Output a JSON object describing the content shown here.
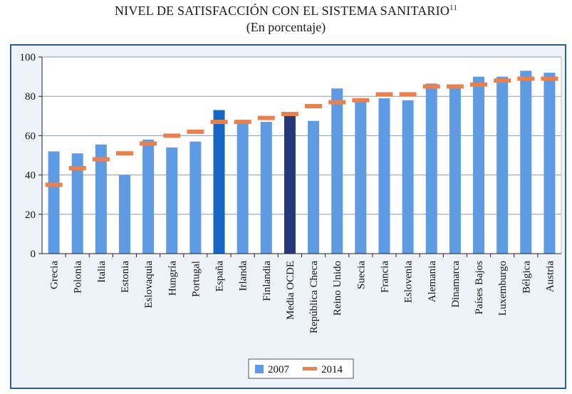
{
  "chart_data": {
    "type": "bar",
    "title": "NIVEL DE SATISFACCIÓN CON EL SISTEMA SANITARIO",
    "title_footnote": "11",
    "subtitle": "(En porcentaje)",
    "xlabel": "",
    "ylabel": "",
    "ylim": [
      0,
      100
    ],
    "yticks": [
      "0",
      "20",
      "40",
      "60",
      "80",
      "100"
    ],
    "grid": true,
    "legend_position": "bottom-center",
    "categories": [
      "Grecia",
      "Polonia",
      "Italia",
      "Estonia",
      "Eslovaquia",
      "Hungría",
      "Portugal",
      "España",
      "Irlanda",
      "Finlandia",
      "Media OCDE",
      "República Checa",
      "Reino Unido",
      "Suecia",
      "Francia",
      "Eslovenia",
      "Alemania",
      "Dinamarca",
      "Países Bajos",
      "Luxemburgo",
      "Bélgica",
      "Austria"
    ],
    "series": [
      {
        "name": "2007",
        "mark": "bar",
        "values": [
          52,
          51,
          55.5,
          40,
          58,
          54,
          57,
          73,
          67,
          67,
          72,
          67.5,
          84,
          78,
          79,
          78,
          86.5,
          85,
          90,
          90,
          93,
          92
        ]
      },
      {
        "name": "2014",
        "mark": "dash",
        "values": [
          35,
          43.5,
          48,
          51,
          56,
          60,
          62,
          67,
          67,
          69,
          71,
          75,
          77,
          78,
          81,
          81,
          85,
          85,
          86,
          88,
          89,
          89
        ]
      }
    ],
    "colors": {
      "bar_default": "#5f9be2",
      "bar_spain": "#1666c4",
      "bar_oecd": "#23397a",
      "dash_2014": "#e8804f",
      "gridline": "#8a9cb8",
      "axis": "#222222"
    },
    "highlight": {
      "España": "bar_spain",
      "Media OCDE": "bar_oecd"
    }
  }
}
